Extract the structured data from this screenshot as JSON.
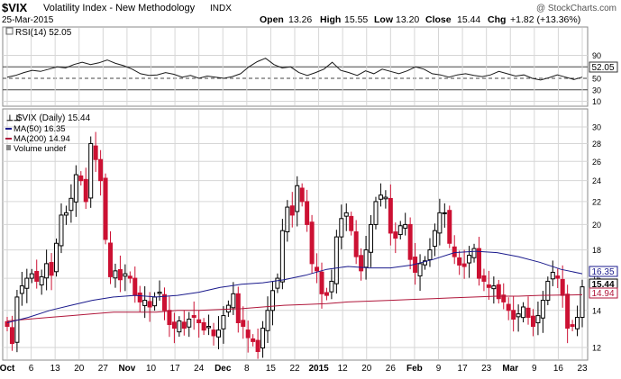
{
  "header": {
    "symbol": "$VIX",
    "name": "Volatility Index - New Methodology",
    "exchange": "INDX",
    "date": "25-Mar-2015",
    "open_label": "Open",
    "open": "13.26",
    "high_label": "High",
    "high": "15.55",
    "low_label": "Low",
    "low": "13.20",
    "close_label": "Close",
    "close": "15.44",
    "chg_label": "Chg",
    "chg": "+1.82 (+13.36%)",
    "watermark": "@ StockCharts.com"
  },
  "rsi_panel": {
    "label": "RSI(14) 52.05",
    "last_value_tag": "52.05"
  },
  "price_panel": {
    "legend": {
      "symbol_line": "$VIX (Daily) 15.44",
      "ma50_line": "MA(50) 16.35",
      "ma200_line": "MA(200) 14.94",
      "volume_line": "Volume undef"
    },
    "tags": {
      "close": "15.44",
      "ma50": "16.35",
      "ma200": "14.94"
    }
  },
  "colors": {
    "up": "#000000",
    "down": "#cc1133",
    "ma50": "#1a1a8c",
    "ma200": "#b0163a",
    "grid": "#d6d6d6",
    "rsi_line": "#1a1a1a"
  },
  "chart_data": [
    {
      "type": "candlestick",
      "title": "$VIX (Daily) 15.44",
      "ylim": [
        11.3,
        32.5
      ],
      "y_scale": "log",
      "y_ticks": [
        12,
        14,
        16,
        18,
        20,
        22,
        24,
        26,
        28,
        30
      ],
      "x_tick_labels": [
        "Oct",
        "6",
        "13",
        "20",
        "27",
        "Nov",
        "10",
        "17",
        "24",
        "Dec",
        "8",
        "15",
        "22",
        "2015",
        "12",
        "20",
        "26",
        "Feb",
        "9",
        "17",
        "23",
        "Mar",
        "9",
        "16",
        "23"
      ],
      "grid": true,
      "legend_position": "top-left",
      "closes": [
        13.1,
        12.2,
        14.8,
        15.5,
        16.0,
        16.3,
        15.8,
        16.1,
        17.0,
        16.2,
        18.5,
        20.8,
        21.0,
        22.3,
        24.6,
        24.0,
        22.0,
        28.0,
        26.2,
        24.0,
        18.8,
        16.1,
        16.5,
        15.9,
        16.3,
        16.0,
        14.9,
        14.5,
        14.6,
        14.2,
        14.8,
        15.1,
        14.0,
        13.2,
        13.0,
        13.4,
        13.0,
        13.5,
        13.6,
        13.3,
        12.9,
        13.1,
        12.6,
        12.9,
        13.7,
        14.3,
        15.0,
        13.3,
        13.1,
        12.5,
        12.3,
        11.8,
        13.0,
        14.0,
        15.2,
        16.0,
        19.5,
        21.5,
        20.8,
        23.5,
        22.0,
        20.0,
        17.0,
        16.5,
        15.0,
        14.9,
        15.8,
        19.0,
        20.5,
        21.0,
        19.5,
        17.5,
        16.5,
        18.0,
        20.0,
        22.0,
        22.6,
        22.4,
        19.3,
        18.9,
        19.9,
        20.0,
        17.3,
        16.4,
        17.0,
        17.2,
        18.0,
        19.5,
        21.0,
        21.0,
        18.5,
        17.5,
        16.9,
        16.8,
        17.6,
        18.1,
        16.0,
        15.8,
        15.4,
        15.5,
        14.7,
        14.5,
        14.0,
        13.5,
        13.8,
        14.2,
        13.6,
        13.1,
        13.7,
        14.6,
        15.8,
        16.4,
        16.0,
        14.9,
        13.0,
        13.1,
        13.6,
        15.44
      ],
      "series": [
        {
          "name": "MA(50)",
          "values": [
            13.3,
            13.6,
            14.0,
            14.3,
            14.6,
            14.8,
            14.9,
            14.8,
            14.9,
            15.1,
            15.4,
            15.6,
            15.7,
            15.9,
            16.2,
            16.6,
            16.8,
            16.7,
            16.7,
            16.9,
            17.3,
            17.8,
            17.9,
            17.8,
            17.5,
            17.1,
            16.6,
            16.3
          ]
        },
        {
          "name": "MA(200)",
          "values": [
            13.4,
            13.5,
            13.6,
            13.7,
            13.8,
            13.9,
            13.9,
            13.9,
            14.0,
            14.0,
            14.05,
            14.1,
            14.2,
            14.3,
            14.35,
            14.4,
            14.5,
            14.55,
            14.6,
            14.65,
            14.7,
            14.75,
            14.8,
            14.85,
            14.85,
            14.9,
            14.92,
            14.94
          ]
        }
      ]
    },
    {
      "type": "line",
      "title": "RSI(14) 52.05",
      "ylim": [
        10,
        95
      ],
      "y_ticks": [
        10,
        30,
        50,
        70,
        90
      ],
      "reference_lines": [
        30,
        50,
        70
      ],
      "series": [
        {
          "name": "RSI(14)",
          "values": [
            52,
            55,
            60,
            64,
            62,
            66,
            70,
            68,
            74,
            78,
            74,
            77,
            82,
            76,
            72,
            66,
            58,
            55,
            56,
            60,
            57,
            52,
            55,
            50,
            54,
            52,
            50,
            53,
            58,
            70,
            79,
            85,
            74,
            68,
            70,
            60,
            55,
            60,
            66,
            78,
            64,
            60,
            55,
            63,
            58,
            66,
            62,
            58,
            63,
            70,
            66,
            58,
            56,
            52,
            56,
            58,
            55,
            53,
            56,
            62,
            58,
            54,
            56,
            50,
            47,
            51,
            56,
            52,
            48,
            52.05
          ]
        }
      ]
    }
  ]
}
